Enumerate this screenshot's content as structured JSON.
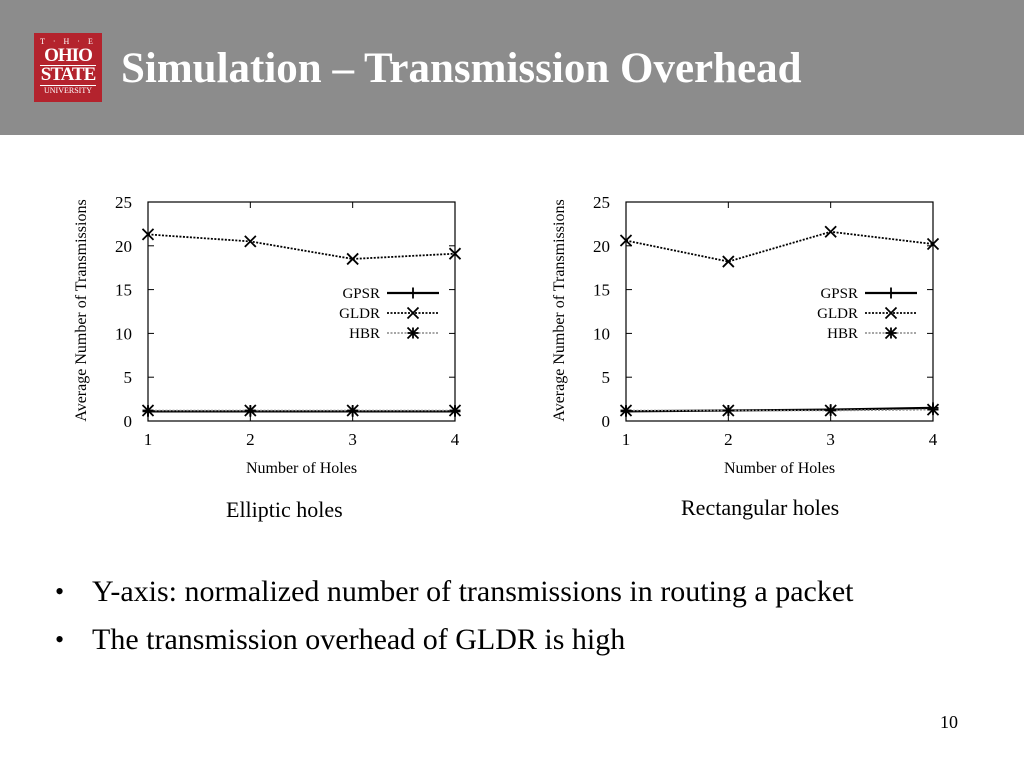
{
  "slide": {
    "title": "Simulation – Transmission Overhead",
    "page_number": "10"
  },
  "logo": {
    "line1": "T · H · E",
    "line2": "OHIO",
    "line3": "STATE",
    "line4": "UNIVERSITY",
    "color": "#b4232d"
  },
  "colors": {
    "title_bar": "#8c8c8c",
    "title_text": "#ffffff"
  },
  "bullets": [
    "Y-axis: normalized number of transmissions in routing a packet",
    "The transmission overhead of GLDR is high"
  ],
  "chart_data": [
    {
      "type": "line",
      "caption": "Elliptic holes",
      "xlabel": "Number of Holes",
      "ylabel": "Average Number of Transmissions",
      "x": [
        1,
        2,
        3,
        4
      ],
      "xlim": [
        1,
        4
      ],
      "ylim": [
        0,
        25
      ],
      "yticks": [
        0,
        5,
        10,
        15,
        20,
        25
      ],
      "xticks": [
        1,
        2,
        3,
        4
      ],
      "grid": false,
      "legend_position": "center-right",
      "series": [
        {
          "name": "GPSR",
          "marker": "plus",
          "line": "solid",
          "values": [
            1.1,
            1.1,
            1.1,
            1.1
          ]
        },
        {
          "name": "GLDR",
          "marker": "x",
          "line": "dotted",
          "values": [
            21.3,
            20.5,
            18.5,
            19.1
          ]
        },
        {
          "name": "HBR",
          "marker": "star",
          "line": "light-dotted",
          "values": [
            1.2,
            1.2,
            1.2,
            1.2
          ]
        }
      ]
    },
    {
      "type": "line",
      "caption": "Rectangular holes",
      "xlabel": "Number of Holes",
      "ylabel": "Average Number of Transmissions",
      "x": [
        1,
        2,
        3,
        4
      ],
      "xlim": [
        1,
        4
      ],
      "ylim": [
        0,
        25
      ],
      "yticks": [
        0,
        5,
        10,
        15,
        20,
        25
      ],
      "xticks": [
        1,
        2,
        3,
        4
      ],
      "grid": false,
      "legend_position": "center-right",
      "series": [
        {
          "name": "GPSR",
          "marker": "plus",
          "line": "solid",
          "values": [
            1.1,
            1.2,
            1.3,
            1.5
          ]
        },
        {
          "name": "GLDR",
          "marker": "x",
          "line": "dotted",
          "values": [
            20.6,
            18.2,
            21.6,
            20.2
          ]
        },
        {
          "name": "HBR",
          "marker": "star",
          "line": "light-dotted",
          "values": [
            1.2,
            1.2,
            1.2,
            1.3
          ]
        }
      ]
    }
  ]
}
